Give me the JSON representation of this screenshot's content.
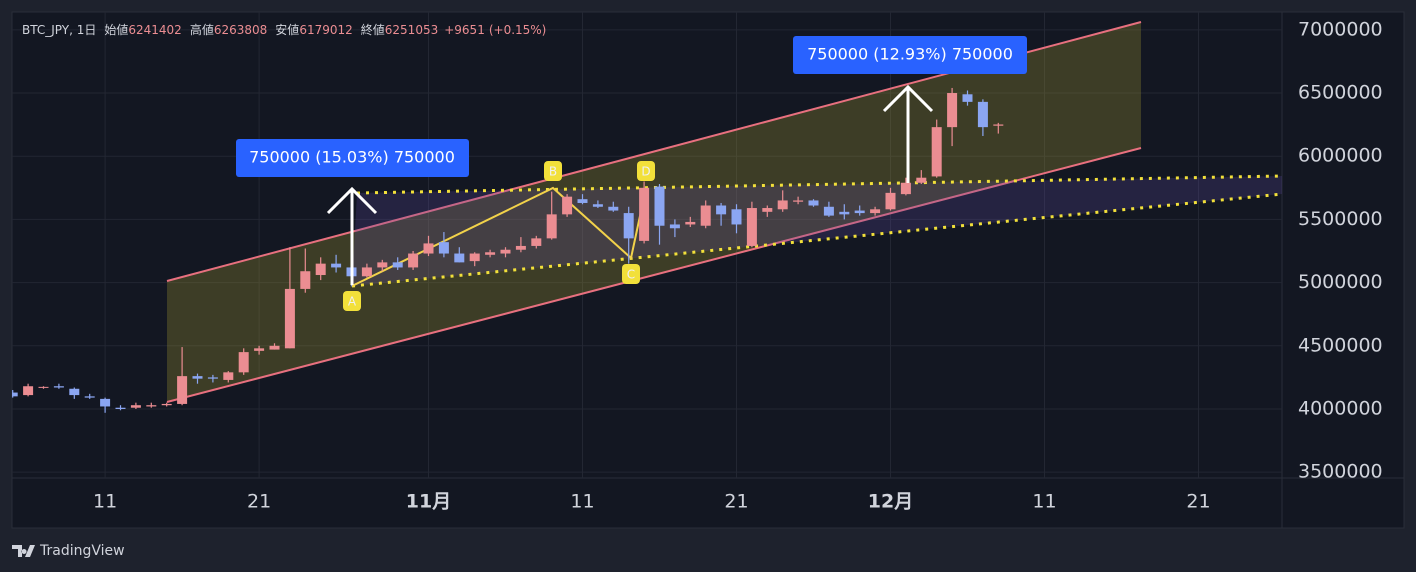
{
  "header": {
    "symbol": "BTC_JPY, 1日",
    "items": [
      {
        "label": "始値",
        "value": 6241402
      },
      {
        "label": "高値",
        "value": 6263808
      },
      {
        "label": "安値",
        "value": 6179012
      },
      {
        "label": "終値",
        "value": 6251053
      }
    ],
    "change": "+9651",
    "change_pct": "(+0.15%)"
  },
  "footer": {
    "logo": "TradingView"
  },
  "chart_data": {
    "type": "candlestick",
    "categories": [
      null,
      null,
      null,
      null,
      null,
      null,
      "11",
      null,
      null,
      null,
      null,
      null,
      null,
      null,
      null,
      null,
      "21",
      null,
      null,
      null,
      null,
      null,
      null,
      null,
      null,
      null,
      null,
      "11月",
      null,
      null,
      null,
      null,
      null,
      null,
      null,
      null,
      null,
      "11",
      null,
      null,
      null,
      null,
      null,
      null,
      null,
      null,
      null,
      "21",
      null,
      null,
      null,
      null,
      null,
      null,
      null,
      null,
      null,
      "12月",
      null,
      null,
      null,
      null,
      null,
      null,
      null,
      null,
      null,
      "11",
      null,
      null,
      null,
      null,
      null,
      null,
      null,
      null,
      null,
      "21",
      null,
      null,
      null,
      null,
      null
    ],
    "open": [
      4130000,
      4110000,
      4170000,
      4180000,
      4160000,
      4100000,
      4080000,
      4010000,
      4010000,
      4020000,
      4030000,
      4040000,
      4260000,
      4250000,
      4230000,
      4290000,
      4460000,
      4470000,
      4480000,
      4950000,
      5060000,
      5150000,
      5120000,
      5050000,
      5120000,
      5160000,
      5120000,
      5230000,
      5320000,
      5230000,
      5170000,
      5220000,
      5230000,
      5260000,
      5290000,
      5350000,
      5540000,
      5660000,
      5620000,
      5600000,
      5550000,
      5330000,
      5760000,
      5460000,
      5460000,
      5450000,
      5610000,
      5580000,
      5290000,
      5560000,
      5580000,
      5640000,
      5650000,
      5600000,
      5560000,
      5570000,
      5550000,
      5580000,
      5700000,
      5790000,
      5840000,
      6230000,
      6490000,
      6430000,
      6241402,
      null,
      null,
      null,
      null,
      null,
      null,
      null,
      null,
      null,
      null,
      null,
      null,
      null,
      null,
      null,
      null,
      null,
      null
    ],
    "high": [
      4150000,
      4200000,
      4180000,
      4200000,
      4170000,
      4120000,
      4090000,
      4030000,
      4050000,
      4050000,
      4050000,
      4490000,
      4280000,
      4270000,
      4300000,
      4480000,
      4500000,
      4520000,
      5280000,
      5270000,
      5200000,
      5220000,
      5150000,
      5150000,
      5180000,
      5200000,
      5250000,
      5370000,
      5400000,
      5280000,
      5240000,
      5260000,
      5280000,
      5360000,
      5370000,
      5720000,
      5700000,
      5700000,
      5650000,
      5640000,
      5600000,
      5800000,
      5780000,
      5500000,
      5520000,
      5650000,
      5630000,
      5620000,
      5640000,
      5610000,
      5730000,
      5680000,
      5660000,
      5640000,
      5620000,
      5610000,
      5600000,
      5750000,
      5830000,
      5890000,
      6290000,
      6540000,
      6520000,
      6450000,
      6263808,
      null,
      null,
      null,
      null,
      null,
      null,
      null,
      null,
      null,
      null,
      null,
      null,
      null,
      null,
      null,
      null,
      null,
      null
    ],
    "low": [
      4090000,
      4100000,
      4160000,
      4160000,
      4080000,
      4080000,
      3970000,
      3990000,
      4000000,
      4010000,
      4020000,
      4030000,
      4200000,
      4210000,
      4210000,
      4270000,
      4430000,
      4470000,
      4480000,
      4920000,
      5020000,
      5080000,
      4970000,
      5040000,
      5090000,
      5100000,
      5100000,
      5210000,
      5200000,
      5160000,
      5130000,
      5200000,
      5200000,
      5240000,
      5270000,
      5340000,
      5520000,
      5620000,
      5590000,
      5560000,
      5150000,
      5310000,
      5300000,
      5360000,
      5440000,
      5430000,
      5450000,
      5390000,
      5280000,
      5520000,
      5560000,
      5620000,
      5600000,
      5520000,
      5500000,
      5530000,
      5530000,
      5570000,
      5690000,
      5780000,
      5830000,
      6080000,
      6400000,
      6160000,
      6179012,
      null,
      null,
      null,
      null,
      null,
      null,
      null,
      null,
      null,
      null,
      null,
      null,
      null,
      null,
      null,
      null,
      null,
      null
    ],
    "close": [
      4100000,
      4180000,
      4175000,
      4170000,
      4110000,
      4090000,
      4020000,
      4000000,
      4030000,
      4030000,
      4040000,
      4260000,
      4240000,
      4240000,
      4290000,
      4450000,
      4480000,
      4500000,
      4950000,
      5090000,
      5150000,
      5120000,
      5050000,
      5120000,
      5160000,
      5120000,
      5230000,
      5310000,
      5230000,
      5160000,
      5230000,
      5240000,
      5260000,
      5290000,
      5350000,
      5540000,
      5680000,
      5630000,
      5600000,
      5570000,
      5350000,
      5750000,
      5450000,
      5430000,
      5480000,
      5610000,
      5540000,
      5460000,
      5590000,
      5590000,
      5650000,
      5650000,
      5610000,
      5530000,
      5540000,
      5550000,
      5580000,
      5710000,
      5790000,
      5830000,
      6230000,
      6500000,
      6430000,
      6230000,
      6251053,
      null,
      null,
      null,
      null,
      null,
      null,
      null,
      null,
      null,
      null,
      null,
      null,
      null,
      null,
      null,
      null,
      null,
      null
    ],
    "up_color": "#eb8d92",
    "down_color": "#8ba6f2",
    "ylim": [
      3454000,
      7141000
    ],
    "yticks": [
      3500000,
      4000000,
      4500000,
      5000000,
      5500000,
      6000000,
      6500000,
      7000000
    ],
    "grid": true,
    "annotations": {
      "measures": [
        "750000 (15.03%) 750000",
        "750000 (12.93%) 750000"
      ],
      "points": [
        "A",
        "B",
        "C",
        "D"
      ]
    }
  }
}
